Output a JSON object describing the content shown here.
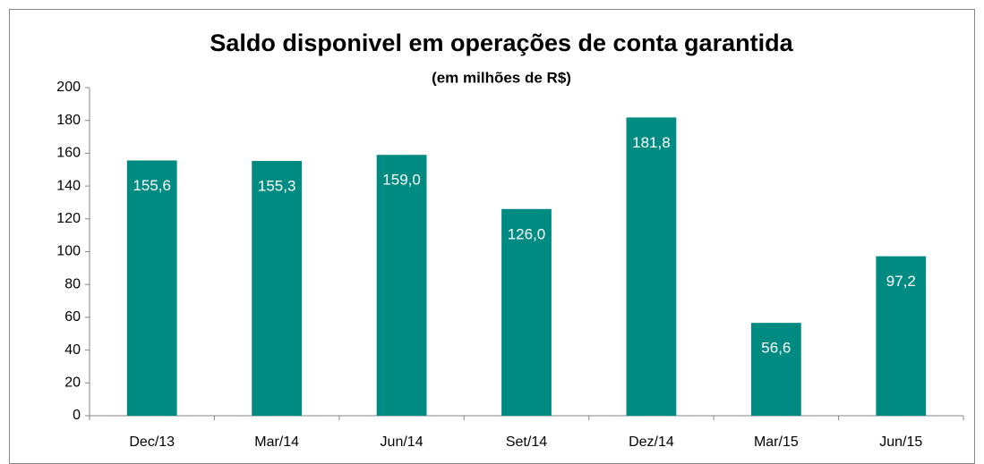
{
  "chart_data": {
    "type": "bar",
    "title": "Saldo disponivel em operações de conta garantida",
    "subtitle": "(em milhões de R$)",
    "categories": [
      "Dec/13",
      "Mar/14",
      "Jun/14",
      "Set/14",
      "Dez/14",
      "Mar/15",
      "Jun/15"
    ],
    "values": [
      155.6,
      155.3,
      159.0,
      126.0,
      181.8,
      56.6,
      97.2
    ],
    "value_labels": [
      "155,6",
      "155,3",
      "159,0",
      "126,0",
      "181,8",
      "56,6",
      "97,2"
    ],
    "color": "#008b82",
    "ylim": [
      0,
      200
    ],
    "yticks": [
      0,
      20,
      40,
      60,
      80,
      100,
      120,
      140,
      160,
      180,
      200
    ],
    "grid": false
  }
}
